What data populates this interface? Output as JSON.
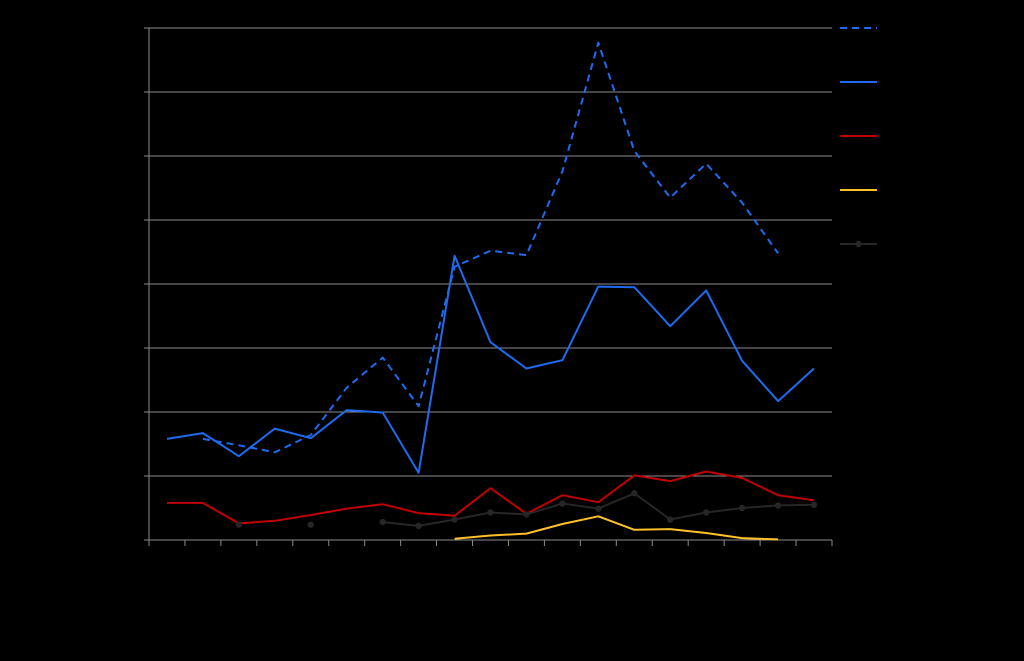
{
  "chart_data": {
    "type": "line",
    "title": "",
    "xlabel": "",
    "ylabel": "",
    "x": [
      1,
      2,
      3,
      4,
      5,
      6,
      7,
      8,
      9,
      10,
      11,
      12,
      13,
      14,
      15,
      16,
      17,
      18,
      19
    ],
    "ylim": [
      0,
      8
    ],
    "y_gridlines": [
      1,
      2,
      3,
      4,
      5,
      6,
      7,
      8
    ],
    "grid": true,
    "legend_position": "top-right",
    "series": [
      {
        "color": "#1E6BEF",
        "style": "dashed",
        "values": [
          null,
          1.58,
          1.48,
          1.37,
          1.64,
          2.38,
          2.85,
          2.09,
          4.27,
          4.52,
          4.45,
          5.76,
          7.77,
          6.08,
          5.35,
          5.88,
          5.27,
          4.48,
          null
        ]
      },
      {
        "color": "#1E6BEF",
        "style": "solid",
        "values": [
          1.58,
          1.67,
          1.31,
          1.74,
          1.59,
          2.03,
          1.99,
          1.05,
          4.44,
          3.09,
          2.68,
          2.81,
          3.96,
          3.95,
          3.34,
          3.9,
          2.8,
          2.17,
          2.68
        ]
      },
      {
        "color": "#C00000",
        "style": "solid",
        "values": [
          0.58,
          0.58,
          0.26,
          0.3,
          0.39,
          0.49,
          0.56,
          0.42,
          0.38,
          0.81,
          0.41,
          0.7,
          0.59,
          1.01,
          0.92,
          1.07,
          0.97,
          0.7,
          0.62
        ]
      },
      {
        "color": "#FFC02A",
        "style": "solid",
        "values": [
          null,
          null,
          null,
          null,
          null,
          null,
          null,
          null,
          0.02,
          0.07,
          0.1,
          0.25,
          0.37,
          0.16,
          0.17,
          0.11,
          0.03,
          0.01,
          null
        ]
      },
      {
        "color": "#262626",
        "style": "solid-markers",
        "values": [
          null,
          null,
          0.24,
          null,
          0.24,
          null,
          0.28,
          0.22,
          0.32,
          0.43,
          0.4,
          0.57,
          0.49,
          0.73,
          0.32,
          0.43,
          0.5,
          0.54,
          0.55
        ]
      }
    ]
  }
}
